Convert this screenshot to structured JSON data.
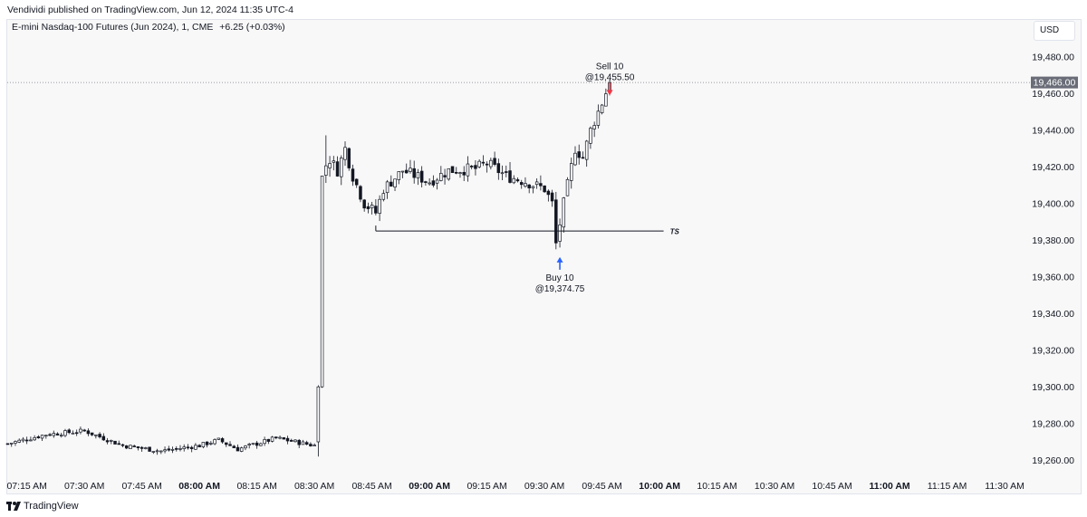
{
  "header": {
    "published": "Vendividi published on TradingView.com, Jun 12, 2024 11:35 UTC-4",
    "symbol": "E-mini Nasdaq-100 Futures (Jun 2024), 1, CME",
    "change": "+6.25 (+0.03%)",
    "currency": "USD"
  },
  "footer": {
    "brand": "TradingView"
  },
  "colors": {
    "buy": "#2962ff",
    "sell": "#f23645",
    "price_line": "#787b86",
    "candle": "#131722"
  },
  "chart_data": {
    "type": "candlestick",
    "interval_minutes": 1,
    "x_ticks": [
      {
        "label": "07:15 AM",
        "bold": false
      },
      {
        "label": "07:30 AM",
        "bold": false
      },
      {
        "label": "07:45 AM",
        "bold": false
      },
      {
        "label": "08:00 AM",
        "bold": true
      },
      {
        "label": "08:15 AM",
        "bold": false
      },
      {
        "label": "08:30 AM",
        "bold": false
      },
      {
        "label": "08:45 AM",
        "bold": false
      },
      {
        "label": "09:00 AM",
        "bold": true
      },
      {
        "label": "09:15 AM",
        "bold": false
      },
      {
        "label": "09:30 AM",
        "bold": false
      },
      {
        "label": "09:45 AM",
        "bold": false
      },
      {
        "label": "10:00 AM",
        "bold": true
      },
      {
        "label": "10:15 AM",
        "bold": false
      },
      {
        "label": "10:30 AM",
        "bold": false
      },
      {
        "label": "10:45 AM",
        "bold": false
      },
      {
        "label": "11:00 AM",
        "bold": true
      },
      {
        "label": "11:15 AM",
        "bold": false
      },
      {
        "label": "11:30 AM",
        "bold": false
      }
    ],
    "y_ticks": [
      "19,480.00",
      "19,460.00",
      "19,440.00",
      "19,420.00",
      "19,400.00",
      "19,380.00",
      "19,360.00",
      "19,340.00",
      "19,320.00",
      "19,300.00",
      "19,280.00",
      "19,260.00"
    ],
    "y_range": [
      19250,
      19480
    ],
    "time_range": [
      "07:10 AM",
      "11:30 AM"
    ],
    "current_price": {
      "value": 19466.0,
      "label": "19,466.00"
    },
    "trades": [
      {
        "side": "buy",
        "label": "Buy 10",
        "price_label": "@19,374.75",
        "time": "09:34 AM",
        "price": 19374.75
      },
      {
        "side": "sell",
        "label": "Sell 10",
        "price_label": "@19,455.50",
        "time": "09:47 AM",
        "price": 19455.5
      }
    ],
    "ts_line": {
      "label": "TS",
      "price": 19385,
      "start": "08:46 AM",
      "end": "10:02 AM"
    },
    "candle_keypoints": [
      {
        "time": "07:10 AM",
        "close": 19269
      },
      {
        "time": "07:20 AM",
        "close": 19274
      },
      {
        "time": "07:30 AM",
        "close": 19276
      },
      {
        "time": "07:40 AM",
        "close": 19268
      },
      {
        "time": "07:50 AM",
        "close": 19265
      },
      {
        "time": "08:00 AM",
        "close": 19268
      },
      {
        "time": "08:05 AM",
        "close": 19271
      },
      {
        "time": "08:10 AM",
        "close": 19266
      },
      {
        "time": "08:20 AM",
        "close": 19272
      },
      {
        "time": "08:30 AM",
        "close": 19268
      },
      {
        "time": "08:31 AM",
        "close": 19300
      },
      {
        "time": "08:32 AM",
        "close": 19418
      },
      {
        "time": "08:34 AM",
        "close": 19424
      },
      {
        "time": "08:36 AM",
        "close": 19418
      },
      {
        "time": "08:38 AM",
        "close": 19430
      },
      {
        "time": "08:40 AM",
        "close": 19415
      },
      {
        "time": "08:43 AM",
        "close": 19400
      },
      {
        "time": "08:46 AM",
        "close": 19395
      },
      {
        "time": "08:48 AM",
        "close": 19408
      },
      {
        "time": "08:53 AM",
        "close": 19418
      },
      {
        "time": "09:00 AM",
        "close": 19412
      },
      {
        "time": "09:05 AM",
        "close": 19418
      },
      {
        "time": "09:12 AM",
        "close": 19419
      },
      {
        "time": "09:15 AM",
        "close": 19422
      },
      {
        "time": "09:20 AM",
        "close": 19415
      },
      {
        "time": "09:25 AM",
        "close": 19412
      },
      {
        "time": "09:30 AM",
        "close": 19408
      },
      {
        "time": "09:32 AM",
        "close": 19400
      },
      {
        "time": "09:33 AM",
        "close": 19378
      },
      {
        "time": "09:35 AM",
        "close": 19400
      },
      {
        "time": "09:38 AM",
        "close": 19430
      },
      {
        "time": "09:40 AM",
        "close": 19425
      },
      {
        "time": "09:42 AM",
        "close": 19440
      },
      {
        "time": "09:45 AM",
        "close": 19455
      },
      {
        "time": "09:47 AM",
        "close": 19466
      }
    ]
  }
}
